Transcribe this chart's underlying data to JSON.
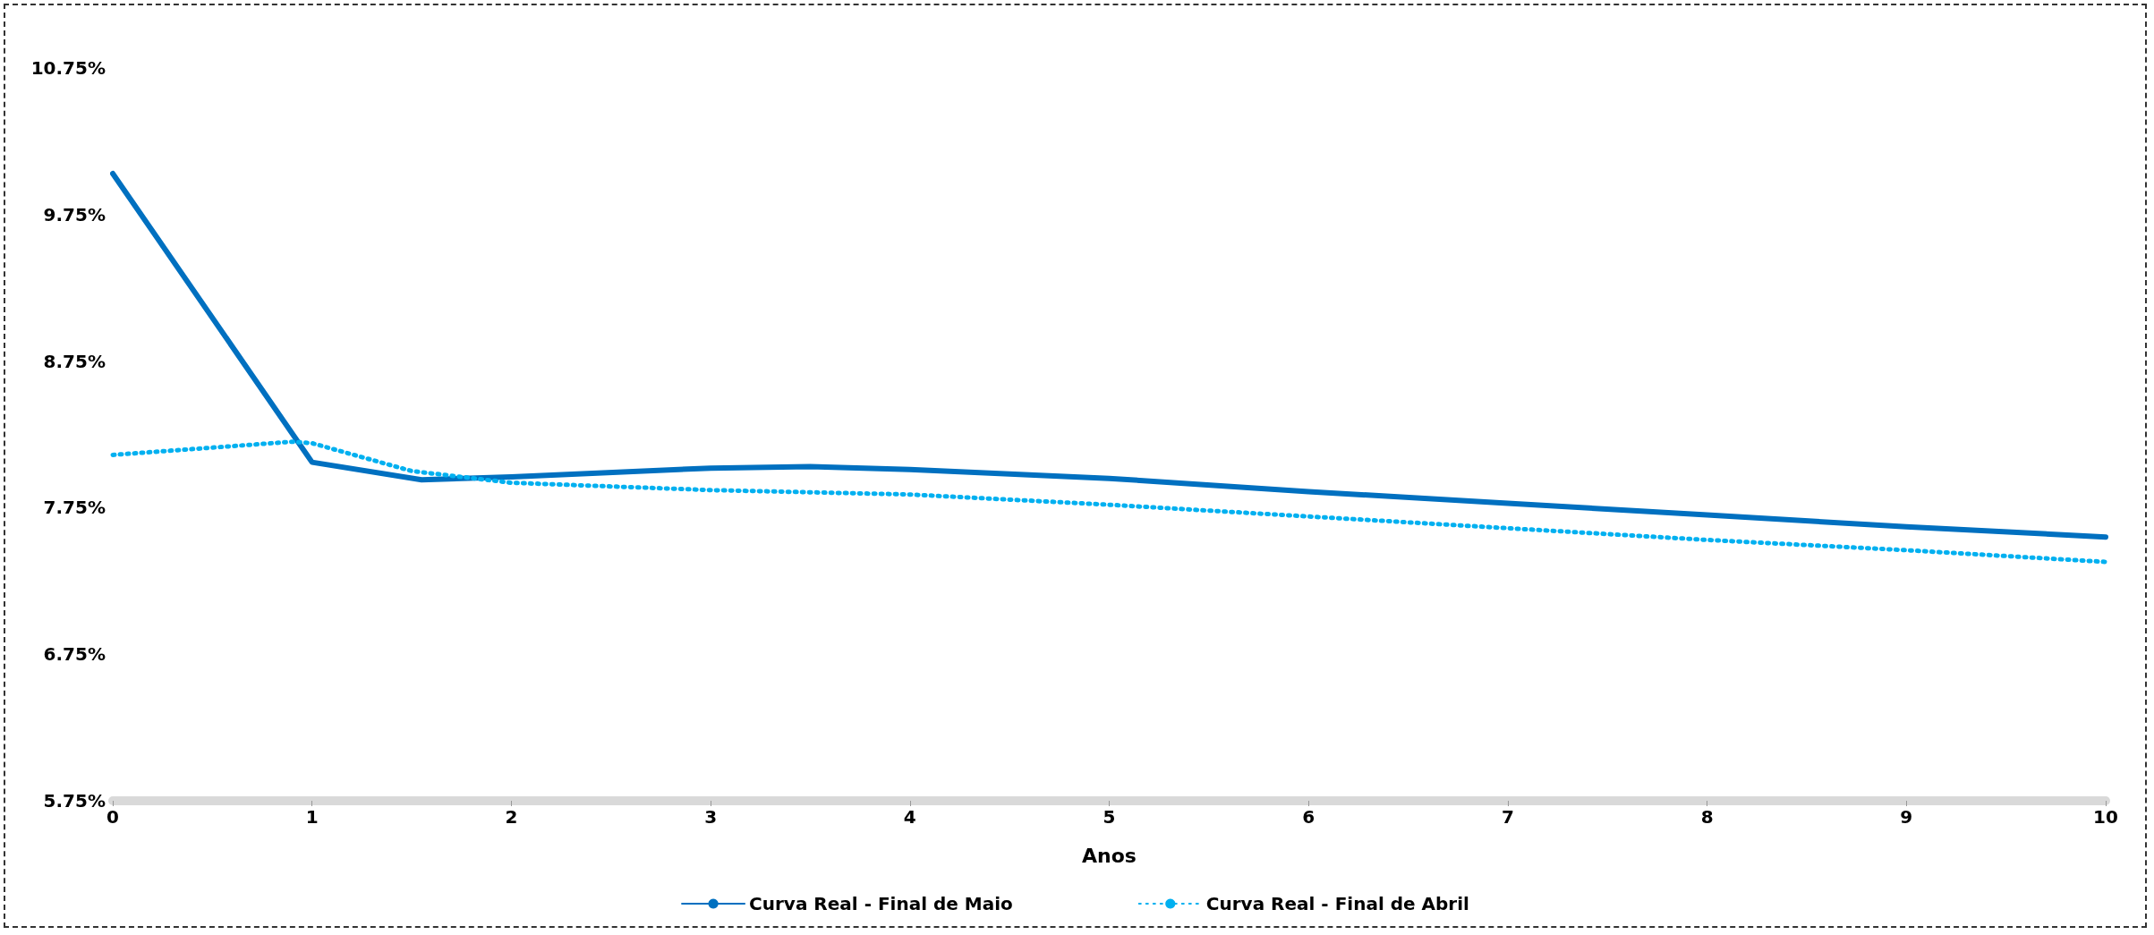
{
  "chart_data": {
    "type": "line",
    "xlabel": "Anos",
    "xlim": [
      0,
      10
    ],
    "xticks": [
      0,
      1,
      2,
      3,
      4,
      5,
      6,
      7,
      8,
      9,
      10
    ],
    "ylim": [
      5.75,
      10.75
    ],
    "yticks": [
      {
        "value": 5.75,
        "label": "5.75%"
      },
      {
        "value": 6.75,
        "label": "6.75%"
      },
      {
        "value": 7.75,
        "label": "7.75%"
      },
      {
        "value": 8.75,
        "label": "8.75%"
      },
      {
        "value": 9.75,
        "label": "9.75%"
      },
      {
        "value": 10.75,
        "label": "10.75%"
      }
    ],
    "grid": false,
    "legend": "bottom",
    "marker": "none",
    "series": [
      {
        "name": "Curva Real - Final de Maio",
        "color": "#0070c0",
        "line_style": "solid",
        "x": [
          0,
          1,
          1.55,
          2,
          3,
          3.5,
          4,
          5,
          6,
          7,
          8,
          9,
          10
        ],
        "values": [
          10.03,
          8.06,
          7.94,
          7.96,
          8.02,
          8.03,
          8.01,
          7.95,
          7.86,
          7.78,
          7.7,
          7.62,
          7.55
        ]
      },
      {
        "name": "Curva Real - Final de Abril",
        "color": "#00b0f0",
        "line_style": "dotted",
        "x": [
          0,
          0.9,
          1,
          1.5,
          2,
          3,
          4,
          5,
          6,
          7,
          8,
          9,
          10
        ],
        "values": [
          8.11,
          8.2,
          8.19,
          8.0,
          7.92,
          7.87,
          7.84,
          7.77,
          7.69,
          7.61,
          7.53,
          7.46,
          7.38
        ]
      }
    ]
  }
}
